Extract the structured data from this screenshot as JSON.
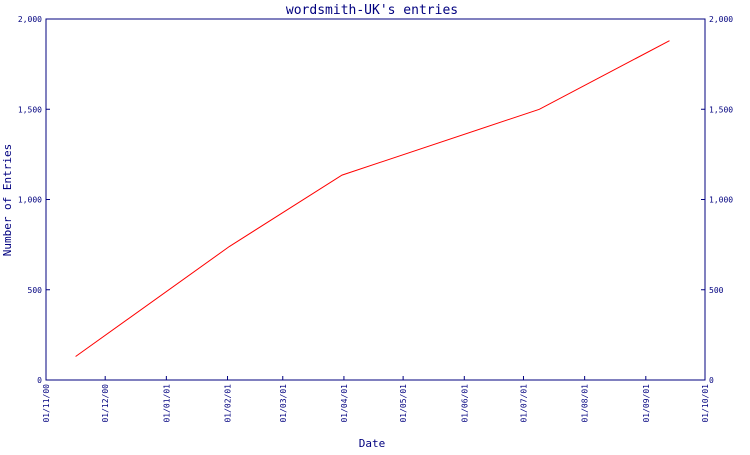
{
  "chart_data": {
    "type": "line",
    "title": "wordsmith-UK's entries",
    "xlabel": "Date",
    "ylabel": "Number of Entries",
    "x_tick_labels": [
      "01/11/00",
      "01/12/00",
      "01/01/01",
      "01/02/01",
      "01/03/01",
      "01/04/01",
      "01/05/01",
      "01/06/01",
      "01/07/01",
      "01/08/01",
      "01/09/01",
      "01/10/01"
    ],
    "y_tick_labels": [
      "0",
      "500",
      "1,000",
      "1,500",
      "2,000"
    ],
    "y_ticks": [
      0,
      500,
      1000,
      1500,
      2000
    ],
    "ylim": [
      0,
      2000
    ],
    "xlim": [
      "2000-11-01",
      "2001-10-01"
    ],
    "grid": false,
    "line_color": "#ff0000",
    "axis_color": "#00007f",
    "series": [
      {
        "x": [
          "2000-11-16",
          "2001-02-02",
          "2001-03-31",
          "2001-07-09",
          "2001-09-13"
        ],
        "y": [
          130,
          740,
          1135,
          1500,
          1880
        ]
      }
    ]
  }
}
